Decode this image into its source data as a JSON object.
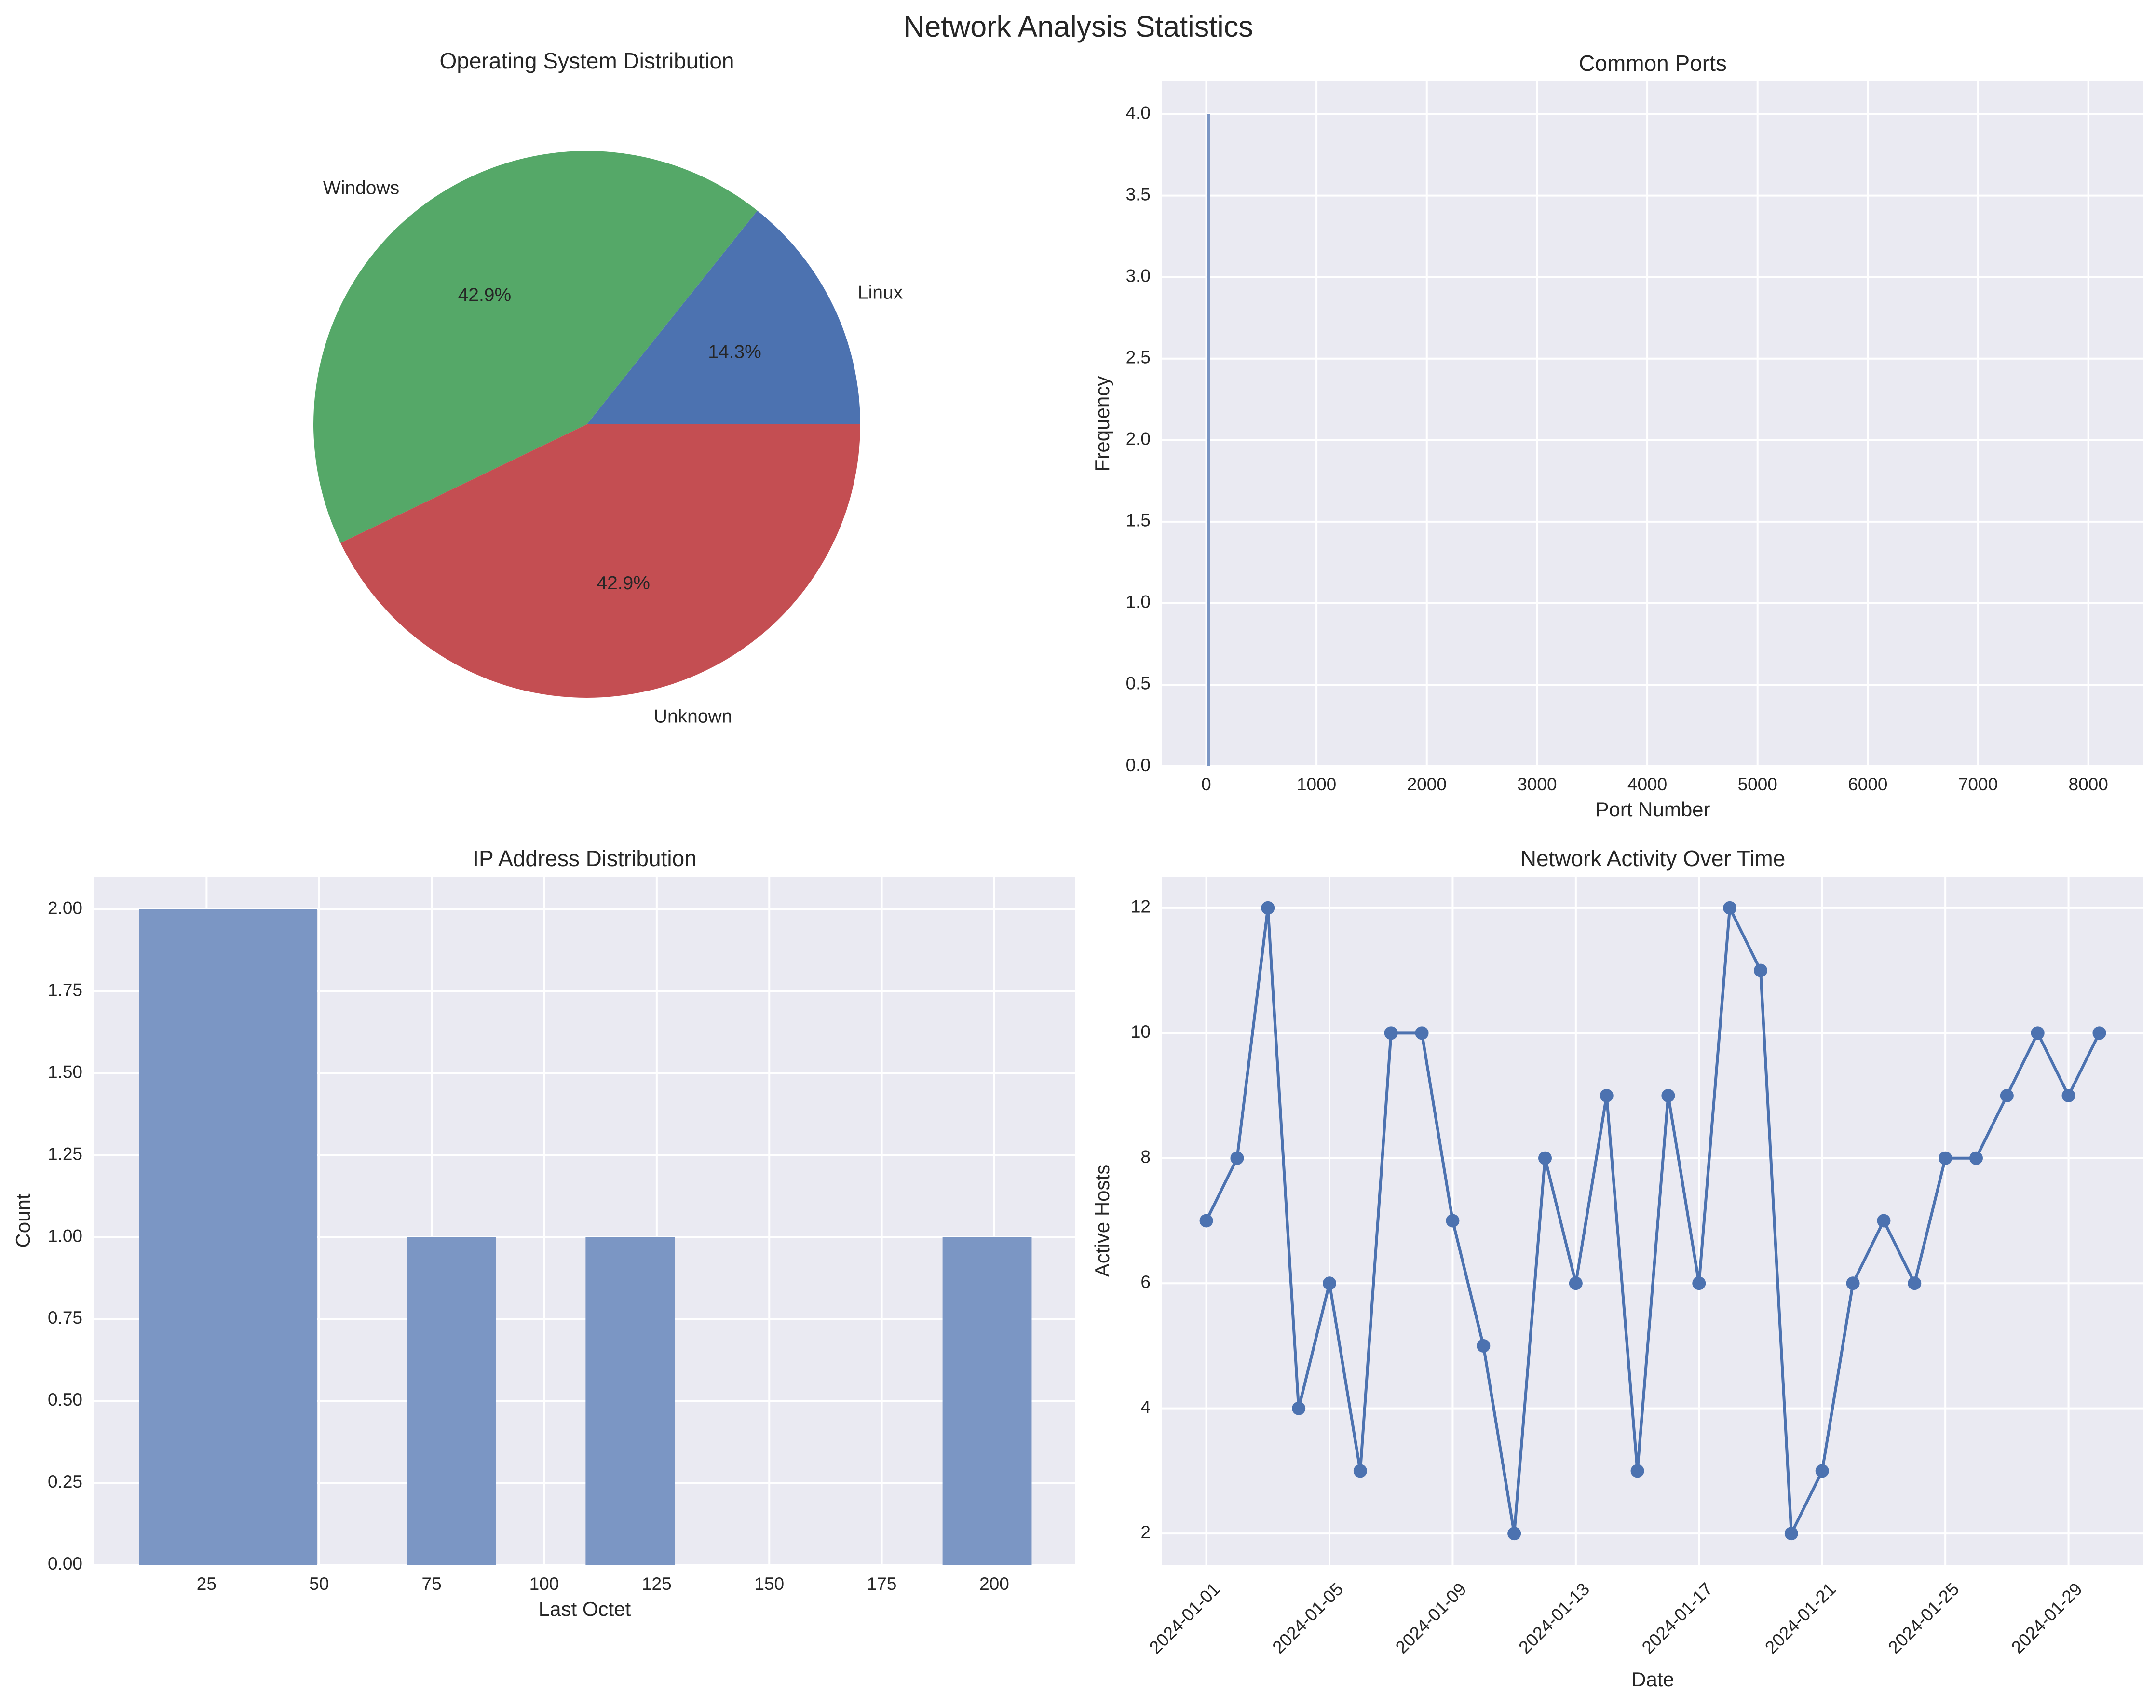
{
  "figure": {
    "title": "Network Analysis Statistics"
  },
  "colors": {
    "background": "#ffffff",
    "axes_face": "#eaeaf2",
    "grid": "#ffffff",
    "blue": "#4c72b0",
    "green": "#55a868",
    "red": "#c44e52",
    "bar_fill": "#7b96c4"
  },
  "chart_data": [
    {
      "type": "pie",
      "title": "Operating System Distribution",
      "labels": [
        "Linux",
        "Windows",
        "Unknown"
      ],
      "values": [
        1,
        3,
        3
      ],
      "percent_labels": [
        "14.3%",
        "42.9%",
        "42.9%"
      ],
      "colors": [
        "#4c72b0",
        "#55a868",
        "#c44e52"
      ]
    },
    {
      "type": "bar",
      "title": "Common Ports",
      "xlabel": "Port Number",
      "ylabel": "Frequency",
      "xlim": [
        -400,
        8500
      ],
      "ylim": [
        0,
        4.2
      ],
      "xticks": [
        0,
        1000,
        2000,
        3000,
        4000,
        5000,
        6000,
        7000,
        8000
      ],
      "yticks": [
        "0.0",
        "0.5",
        "1.0",
        "1.5",
        "2.0",
        "2.5",
        "3.0",
        "3.5",
        "4.0"
      ],
      "bars": [
        {
          "x": 22,
          "value": 4
        }
      ],
      "grid": true
    },
    {
      "type": "bar",
      "title": "IP Address Distribution",
      "xlabel": "Last Octet",
      "ylabel": "Count",
      "xlim": [
        0,
        218
      ],
      "ylim": [
        0,
        2.1
      ],
      "xticks": [
        25,
        50,
        75,
        100,
        125,
        150,
        175,
        200
      ],
      "yticks": [
        "0.00",
        "0.25",
        "0.50",
        "0.75",
        "1.00",
        "1.25",
        "1.50",
        "1.75",
        "2.00"
      ],
      "bins": [
        {
          "x0": 10,
          "x1": 49.5,
          "value": 2
        },
        {
          "x0": 69.5,
          "x1": 89.3,
          "value": 1
        },
        {
          "x0": 109.2,
          "x1": 129,
          "value": 1
        },
        {
          "x0": 188.5,
          "x1": 208.3,
          "value": 1
        }
      ],
      "grid": true
    },
    {
      "type": "line",
      "title": "Network Activity Over Time",
      "xlabel": "Date",
      "ylabel": "Active Hosts",
      "ylim": [
        1.5,
        12.5
      ],
      "yticks": [
        2,
        4,
        6,
        8,
        10,
        12
      ],
      "xticks": [
        "2024-01-01",
        "2024-01-05",
        "2024-01-09",
        "2024-01-13",
        "2024-01-17",
        "2024-01-21",
        "2024-01-25",
        "2024-01-29"
      ],
      "x": [
        "2024-01-01",
        "2024-01-02",
        "2024-01-03",
        "2024-01-04",
        "2024-01-05",
        "2024-01-06",
        "2024-01-07",
        "2024-01-08",
        "2024-01-09",
        "2024-01-10",
        "2024-01-11",
        "2024-01-12",
        "2024-01-13",
        "2024-01-14",
        "2024-01-15",
        "2024-01-16",
        "2024-01-17",
        "2024-01-18",
        "2024-01-19",
        "2024-01-20",
        "2024-01-21",
        "2024-01-22",
        "2024-01-23",
        "2024-01-24",
        "2024-01-25",
        "2024-01-26",
        "2024-01-27",
        "2024-01-28",
        "2024-01-29",
        "2024-01-30"
      ],
      "series": [
        {
          "values": [
            7,
            8,
            12,
            4,
            6,
            3,
            10,
            10,
            7,
            5,
            2,
            8,
            6,
            9,
            3,
            9,
            6,
            12,
            11,
            2,
            3,
            6,
            7,
            6,
            8,
            8,
            9,
            10,
            9,
            10
          ]
        }
      ],
      "markers": true,
      "grid": true
    }
  ]
}
